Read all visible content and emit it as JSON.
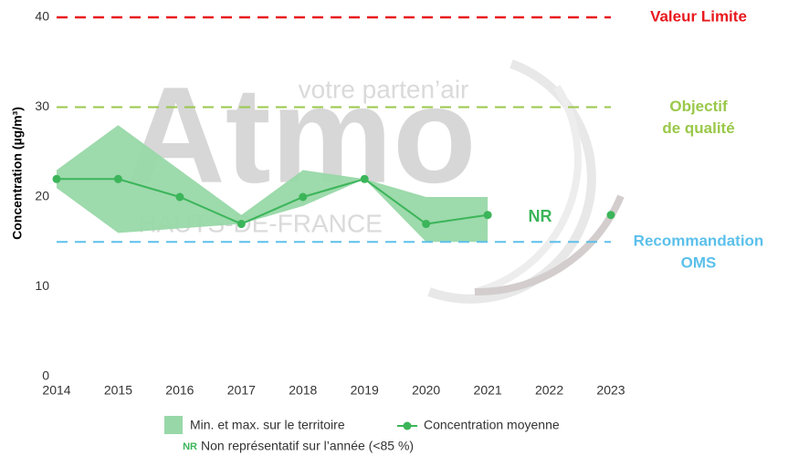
{
  "chart_data": {
    "type": "line",
    "ylabel": "Concentration (µg/m³)",
    "categories": [
      "2014",
      "2015",
      "2016",
      "2017",
      "2018",
      "2019",
      "2020",
      "2021",
      "2022",
      "2023"
    ],
    "ylim": [
      0,
      40
    ],
    "yticks": [
      0,
      10,
      20,
      30,
      40
    ],
    "band": {
      "name": "Min. et max. sur le territoire",
      "color": "#98d8a8",
      "max": [
        23,
        28,
        23,
        18,
        23,
        22,
        20,
        20,
        null,
        null
      ],
      "min": [
        21,
        16,
        16.5,
        17,
        19,
        22,
        15,
        15,
        null,
        null
      ]
    },
    "series": [
      {
        "name": "Concentration moyenne",
        "color": "#3cb55a",
        "values": [
          22,
          22,
          20,
          17,
          20,
          22,
          17,
          18,
          null,
          18
        ]
      }
    ],
    "reference_lines": [
      {
        "value": 40,
        "label": [
          "Valeur Limite"
        ],
        "color": "#e8191e"
      },
      {
        "value": 30,
        "label": [
          "Objectif",
          "de qualité"
        ],
        "color": "#9ac84a"
      },
      {
        "value": 15,
        "label": [
          "Recommandation",
          "OMS"
        ],
        "color": "#5bc0eb"
      }
    ],
    "na_label": {
      "text": "NR",
      "category": "2022"
    },
    "footnote": {
      "key": "NR",
      "text": "Non représentatif sur l’année (<85 %)"
    },
    "watermark": {
      "main": "Atmo",
      "top": "votre parten’air",
      "bottom": "HAUTS-DE-FRANCE"
    }
  }
}
